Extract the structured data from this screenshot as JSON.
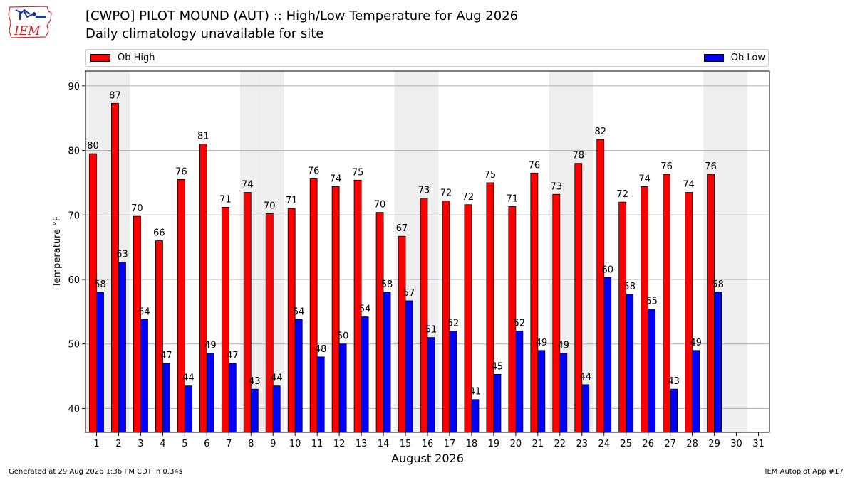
{
  "header": {
    "title": "[CWPO] PILOT MOUND (AUT) :: High/Low Temperature for Aug 2026",
    "subtitle": "Daily climatology unavailable for site",
    "logo_text": "IEM"
  },
  "legend": {
    "high_label": "Ob High",
    "low_label": "Ob Low"
  },
  "colors": {
    "high": "#ff0000",
    "low": "#0000ff",
    "weekend_band": "#eeeeee",
    "grid": "#b0b0b0"
  },
  "footer": {
    "generated": "Generated at 29 Aug 2026 1:36 PM CDT in 0.34s",
    "app": "IEM Autoplot App #17"
  },
  "chart_data": {
    "type": "bar",
    "xlabel": "August 2026",
    "ylabel": "Temperature °F",
    "ylim": [
      36.3,
      92.3
    ],
    "yticks": [
      40,
      50,
      60,
      70,
      80,
      90
    ],
    "categories": [
      "1",
      "2",
      "3",
      "4",
      "5",
      "6",
      "7",
      "8",
      "9",
      "10",
      "11",
      "12",
      "13",
      "14",
      "15",
      "16",
      "17",
      "18",
      "19",
      "20",
      "21",
      "22",
      "23",
      "24",
      "25",
      "26",
      "27",
      "28",
      "29",
      "30",
      "31"
    ],
    "shaded_days": [
      1,
      2,
      8,
      9,
      15,
      16,
      22,
      23,
      29,
      30
    ],
    "grid": true,
    "legend_placement": "top",
    "series": [
      {
        "name": "Ob High",
        "values": [
          79.5,
          87.3,
          69.8,
          66.0,
          75.5,
          81.0,
          71.2,
          73.5,
          70.2,
          71.0,
          75.6,
          74.4,
          75.4,
          70.4,
          66.7,
          72.6,
          72.2,
          71.6,
          75.0,
          71.3,
          76.5,
          73.2,
          78.0,
          81.7,
          72.0,
          74.4,
          76.3,
          73.5,
          76.3,
          null,
          null
        ],
        "labels": [
          "80",
          "87",
          "70",
          "66",
          "76",
          "81",
          "71",
          "74",
          "70",
          "71",
          "76",
          "74",
          "75",
          "70",
          "67",
          "73",
          "72",
          "72",
          "75",
          "71",
          "76",
          "73",
          "78",
          "82",
          "72",
          "74",
          "76",
          "74",
          "76",
          "",
          ""
        ]
      },
      {
        "name": "Ob Low",
        "values": [
          58.0,
          62.7,
          53.8,
          47.0,
          43.5,
          48.6,
          47.0,
          43.0,
          43.5,
          53.8,
          48.0,
          50.0,
          54.2,
          58.0,
          56.7,
          51.0,
          52.0,
          41.4,
          45.3,
          52.0,
          49.0,
          48.6,
          43.7,
          60.3,
          57.7,
          55.4,
          43.0,
          49.0,
          58.0,
          null,
          null
        ],
        "labels": [
          "58",
          "63",
          "54",
          "47",
          "44",
          "49",
          "47",
          "43",
          "44",
          "54",
          "48",
          "50",
          "54",
          "58",
          "57",
          "51",
          "52",
          "41",
          "45",
          "52",
          "49",
          "49",
          "44",
          "60",
          "58",
          "55",
          "43",
          "49",
          "58",
          "",
          ""
        ]
      }
    ]
  }
}
